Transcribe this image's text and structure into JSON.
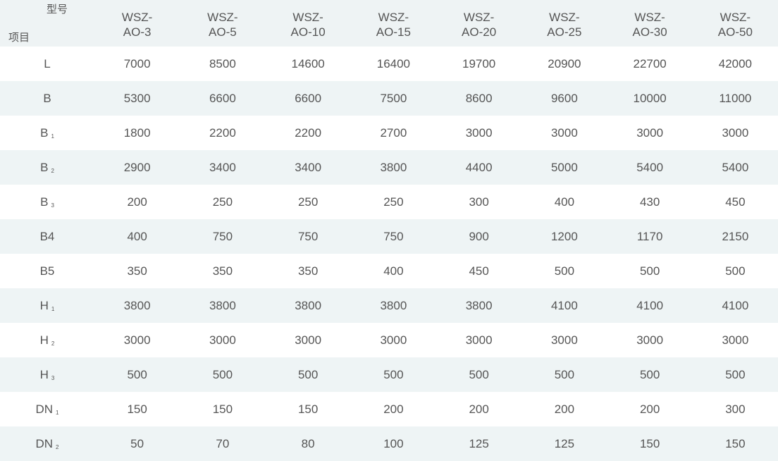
{
  "header": {
    "corner_model": "型号",
    "corner_item": "项目",
    "models": [
      [
        "WSZ-",
        "AO-3"
      ],
      [
        "WSZ-",
        "AO-5"
      ],
      [
        "WSZ-",
        "AO-10"
      ],
      [
        "WSZ-",
        "AO-15"
      ],
      [
        "WSZ-",
        "AO-20"
      ],
      [
        "WSZ-",
        "AO-25"
      ],
      [
        "WSZ-",
        "AO-30"
      ],
      [
        "WSZ-",
        "AO-50"
      ]
    ]
  },
  "rows": [
    {
      "label": "L",
      "sub": "",
      "values": [
        "7000",
        "8500",
        "14600",
        "16400",
        "19700",
        "20900",
        "22700",
        "42000"
      ]
    },
    {
      "label": "B",
      "sub": "",
      "values": [
        "5300",
        "6600",
        "6600",
        "7500",
        "8600",
        "9600",
        "10000",
        "11000"
      ]
    },
    {
      "label": "B",
      "sub": "1",
      "values": [
        "1800",
        "2200",
        "2200",
        "2700",
        "3000",
        "3000",
        "3000",
        "3000"
      ]
    },
    {
      "label": "B",
      "sub": "2",
      "values": [
        "2900",
        "3400",
        "3400",
        "3800",
        "4400",
        "5000",
        "5400",
        "5400"
      ]
    },
    {
      "label": "B",
      "sub": "3",
      "values": [
        "200",
        "250",
        "250",
        "250",
        "300",
        "400",
        "430",
        "450"
      ]
    },
    {
      "label": "B4",
      "sub": "",
      "values": [
        "400",
        "750",
        "750",
        "750",
        "900",
        "1200",
        "1170",
        "2150"
      ]
    },
    {
      "label": "B5",
      "sub": "",
      "values": [
        "350",
        "350",
        "350",
        "400",
        "450",
        "500",
        "500",
        "500"
      ]
    },
    {
      "label": "H",
      "sub": "1",
      "values": [
        "3800",
        "3800",
        "3800",
        "3800",
        "3800",
        "4100",
        "4100",
        "4100"
      ]
    },
    {
      "label": "H",
      "sub": "2",
      "values": [
        "3000",
        "3000",
        "3000",
        "3000",
        "3000",
        "3000",
        "3000",
        "3000"
      ]
    },
    {
      "label": "H",
      "sub": "3",
      "values": [
        "500",
        "500",
        "500",
        "500",
        "500",
        "500",
        "500",
        "500"
      ]
    },
    {
      "label": "DN",
      "sub": "1",
      "values": [
        "150",
        "150",
        "150",
        "200",
        "200",
        "200",
        "200",
        "300"
      ]
    },
    {
      "label": "DN",
      "sub": "2",
      "values": [
        "50",
        "70",
        "80",
        "100",
        "125",
        "125",
        "150",
        "150"
      ]
    }
  ]
}
